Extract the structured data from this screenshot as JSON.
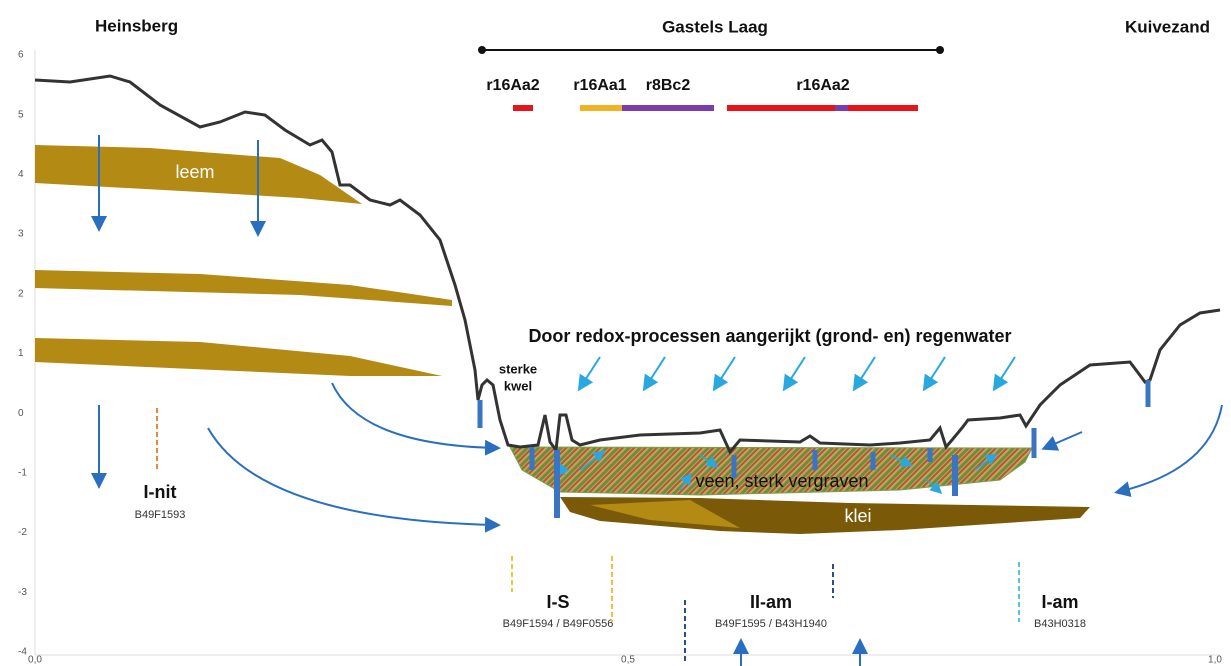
{
  "places": {
    "left": "Heinsberg",
    "center": "Gastels Laag",
    "right": "Kuivezand"
  },
  "axis": {
    "y_ticks": [
      "6",
      "5",
      "4",
      "3",
      "2",
      "1",
      "0",
      "-1",
      "-2",
      "-3",
      "-4"
    ],
    "x_ticks": [
      "0,0",
      "0,5",
      "1,0"
    ]
  },
  "soil_units": [
    "r16Aa2",
    "r16Aa1",
    "r8Bc2",
    "r16Aa2"
  ],
  "layers": {
    "leem": "leem",
    "veen": "veen, sterk vergraven",
    "klei": "klei"
  },
  "annotations": {
    "redox": "Door redox-processen aangerijkt (grond- en) regenwater",
    "kwel": [
      "sterke",
      "kwel"
    ]
  },
  "water_types": [
    {
      "code": "I-nit",
      "wells": "B49F1593"
    },
    {
      "code": "I-S",
      "wells": "B49F1594 / B49F0556"
    },
    {
      "code": "II-am",
      "wells": "B49F1595 / B43H1940"
    },
    {
      "code": "I-am",
      "wells": "B43H0318"
    }
  ]
}
